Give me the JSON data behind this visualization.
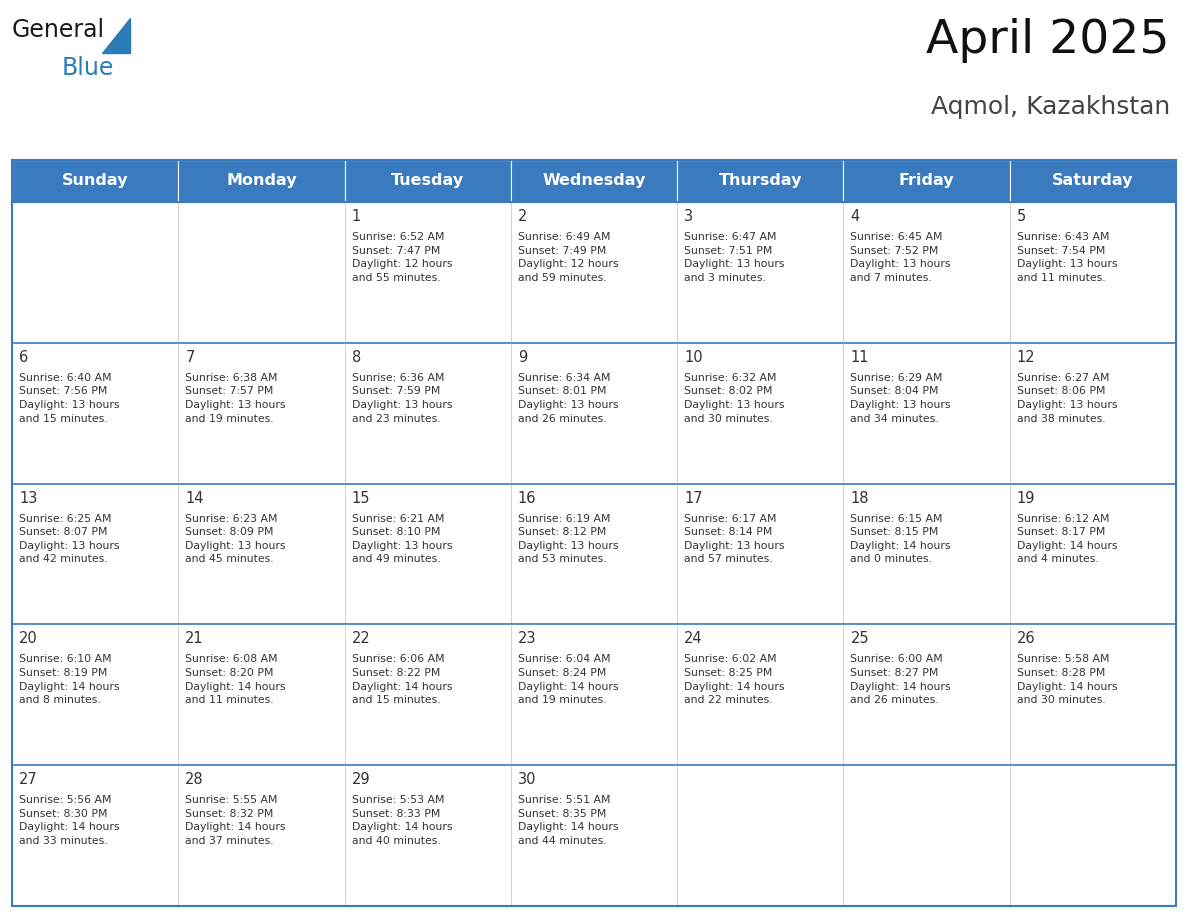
{
  "title": "April 2025",
  "subtitle": "Aqmol, Kazakhstan",
  "days_of_week": [
    "Sunday",
    "Monday",
    "Tuesday",
    "Wednesday",
    "Thursday",
    "Friday",
    "Saturday"
  ],
  "header_bg": "#3a7abf",
  "header_text": "#ffffff",
  "cell_bg": "#ffffff",
  "row_sep_color": "#3a7abf",
  "col_sep_color": "#c0c0c0",
  "outer_border_color": "#3a7abf",
  "text_color": "#333333",
  "day_num_color": "#333333",
  "logo_general_color": "#1a1a1a",
  "logo_blue_color": "#2b7bb9",
  "title_color": "#111111",
  "subtitle_color": "#444444",
  "calendar_data": [
    [
      {
        "day": null,
        "text": ""
      },
      {
        "day": null,
        "text": ""
      },
      {
        "day": 1,
        "text": "Sunrise: 6:52 AM\nSunset: 7:47 PM\nDaylight: 12 hours\nand 55 minutes."
      },
      {
        "day": 2,
        "text": "Sunrise: 6:49 AM\nSunset: 7:49 PM\nDaylight: 12 hours\nand 59 minutes."
      },
      {
        "day": 3,
        "text": "Sunrise: 6:47 AM\nSunset: 7:51 PM\nDaylight: 13 hours\nand 3 minutes."
      },
      {
        "day": 4,
        "text": "Sunrise: 6:45 AM\nSunset: 7:52 PM\nDaylight: 13 hours\nand 7 minutes."
      },
      {
        "day": 5,
        "text": "Sunrise: 6:43 AM\nSunset: 7:54 PM\nDaylight: 13 hours\nand 11 minutes."
      }
    ],
    [
      {
        "day": 6,
        "text": "Sunrise: 6:40 AM\nSunset: 7:56 PM\nDaylight: 13 hours\nand 15 minutes."
      },
      {
        "day": 7,
        "text": "Sunrise: 6:38 AM\nSunset: 7:57 PM\nDaylight: 13 hours\nand 19 minutes."
      },
      {
        "day": 8,
        "text": "Sunrise: 6:36 AM\nSunset: 7:59 PM\nDaylight: 13 hours\nand 23 minutes."
      },
      {
        "day": 9,
        "text": "Sunrise: 6:34 AM\nSunset: 8:01 PM\nDaylight: 13 hours\nand 26 minutes."
      },
      {
        "day": 10,
        "text": "Sunrise: 6:32 AM\nSunset: 8:02 PM\nDaylight: 13 hours\nand 30 minutes."
      },
      {
        "day": 11,
        "text": "Sunrise: 6:29 AM\nSunset: 8:04 PM\nDaylight: 13 hours\nand 34 minutes."
      },
      {
        "day": 12,
        "text": "Sunrise: 6:27 AM\nSunset: 8:06 PM\nDaylight: 13 hours\nand 38 minutes."
      }
    ],
    [
      {
        "day": 13,
        "text": "Sunrise: 6:25 AM\nSunset: 8:07 PM\nDaylight: 13 hours\nand 42 minutes."
      },
      {
        "day": 14,
        "text": "Sunrise: 6:23 AM\nSunset: 8:09 PM\nDaylight: 13 hours\nand 45 minutes."
      },
      {
        "day": 15,
        "text": "Sunrise: 6:21 AM\nSunset: 8:10 PM\nDaylight: 13 hours\nand 49 minutes."
      },
      {
        "day": 16,
        "text": "Sunrise: 6:19 AM\nSunset: 8:12 PM\nDaylight: 13 hours\nand 53 minutes."
      },
      {
        "day": 17,
        "text": "Sunrise: 6:17 AM\nSunset: 8:14 PM\nDaylight: 13 hours\nand 57 minutes."
      },
      {
        "day": 18,
        "text": "Sunrise: 6:15 AM\nSunset: 8:15 PM\nDaylight: 14 hours\nand 0 minutes."
      },
      {
        "day": 19,
        "text": "Sunrise: 6:12 AM\nSunset: 8:17 PM\nDaylight: 14 hours\nand 4 minutes."
      }
    ],
    [
      {
        "day": 20,
        "text": "Sunrise: 6:10 AM\nSunset: 8:19 PM\nDaylight: 14 hours\nand 8 minutes."
      },
      {
        "day": 21,
        "text": "Sunrise: 6:08 AM\nSunset: 8:20 PM\nDaylight: 14 hours\nand 11 minutes."
      },
      {
        "day": 22,
        "text": "Sunrise: 6:06 AM\nSunset: 8:22 PM\nDaylight: 14 hours\nand 15 minutes."
      },
      {
        "day": 23,
        "text": "Sunrise: 6:04 AM\nSunset: 8:24 PM\nDaylight: 14 hours\nand 19 minutes."
      },
      {
        "day": 24,
        "text": "Sunrise: 6:02 AM\nSunset: 8:25 PM\nDaylight: 14 hours\nand 22 minutes."
      },
      {
        "day": 25,
        "text": "Sunrise: 6:00 AM\nSunset: 8:27 PM\nDaylight: 14 hours\nand 26 minutes."
      },
      {
        "day": 26,
        "text": "Sunrise: 5:58 AM\nSunset: 8:28 PM\nDaylight: 14 hours\nand 30 minutes."
      }
    ],
    [
      {
        "day": 27,
        "text": "Sunrise: 5:56 AM\nSunset: 8:30 PM\nDaylight: 14 hours\nand 33 minutes."
      },
      {
        "day": 28,
        "text": "Sunrise: 5:55 AM\nSunset: 8:32 PM\nDaylight: 14 hours\nand 37 minutes."
      },
      {
        "day": 29,
        "text": "Sunrise: 5:53 AM\nSunset: 8:33 PM\nDaylight: 14 hours\nand 40 minutes."
      },
      {
        "day": 30,
        "text": "Sunrise: 5:51 AM\nSunset: 8:35 PM\nDaylight: 14 hours\nand 44 minutes."
      },
      {
        "day": null,
        "text": ""
      },
      {
        "day": null,
        "text": ""
      },
      {
        "day": null,
        "text": ""
      }
    ]
  ]
}
